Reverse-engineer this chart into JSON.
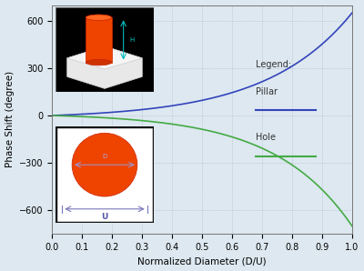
{
  "xlabel": "Normalized Diameter (D/U)",
  "ylabel": "Phase Shift (degree)",
  "xlim": [
    0.0,
    1.0
  ],
  "ylim": [
    -750,
    700
  ],
  "yticks": [
    -600,
    -300,
    0,
    300,
    600
  ],
  "xticks": [
    0.0,
    0.1,
    0.2,
    0.3,
    0.4,
    0.5,
    0.6,
    0.7,
    0.8,
    0.9,
    1.0
  ],
  "pillar_color": "#3344bb",
  "hole_color": "#44aa44",
  "background_color": "#dde8f0",
  "grid_color": "#9999bb",
  "legend_title": "Legend:",
  "legend_pillar": "Pillar",
  "legend_hole": "Hole"
}
